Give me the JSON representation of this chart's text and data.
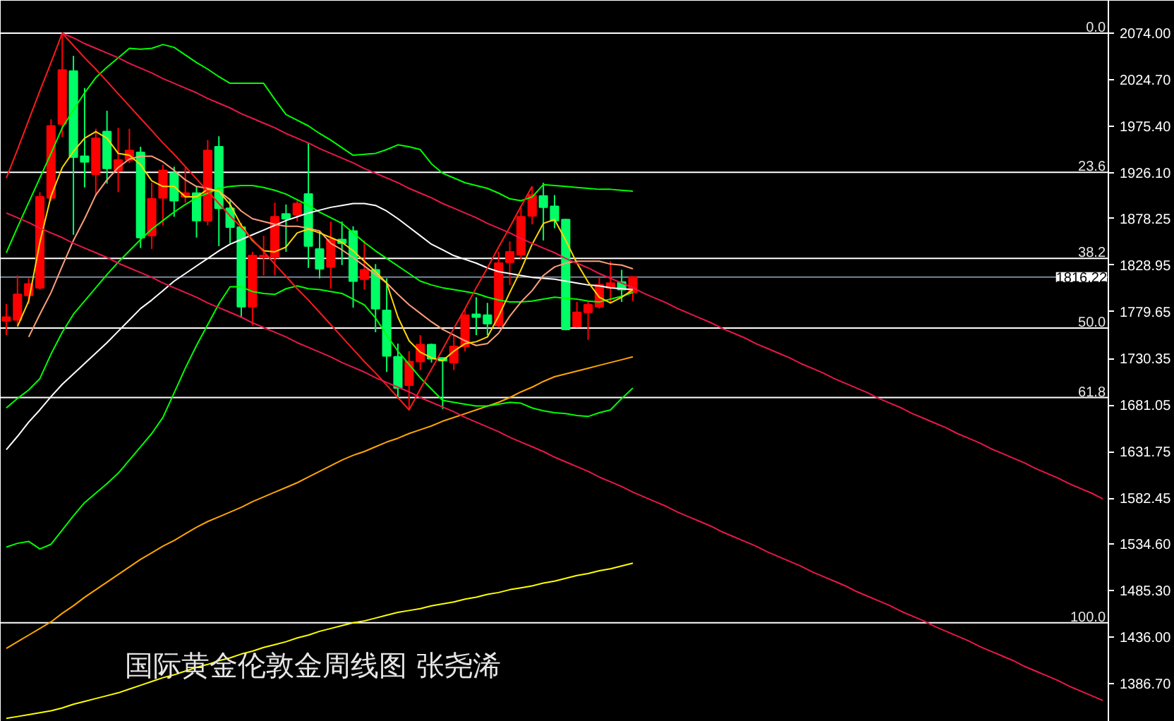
{
  "chart_data": {
    "type": "candlestick",
    "title": "国际黄金伦敦金周线图 张尧浠",
    "categories": [
      null,
      null,
      null,
      null,
      null,
      null,
      null,
      null,
      null,
      null,
      null,
      null,
      null,
      null,
      null,
      null,
      null,
      null,
      null,
      null,
      null,
      null,
      null,
      null,
      null,
      null,
      null,
      null,
      null,
      null,
      null,
      null,
      null,
      null,
      null,
      null,
      null,
      null,
      null,
      null,
      null,
      null,
      null,
      null,
      null,
      null,
      null,
      null,
      null,
      null,
      null,
      null,
      null,
      null,
      null,
      null,
      null,
      null,
      null,
      null,
      null,
      null,
      null,
      null,
      null,
      null,
      null,
      null,
      null,
      null,
      null,
      null,
      null,
      null,
      null,
      null,
      null,
      null,
      null,
      null,
      null,
      null,
      null,
      null,
      null,
      null,
      null,
      null,
      null,
      null,
      null,
      null,
      null,
      null,
      null,
      null,
      null,
      null,
      null
    ],
    "ohlc": [
      [
        1770,
        1788,
        1755,
        1774
      ],
      [
        1771,
        1818,
        1765,
        1798
      ],
      [
        1797,
        1815,
        1788,
        1809
      ],
      [
        1805,
        1906,
        1803,
        1901
      ],
      [
        1900,
        1983,
        1897,
        1976
      ],
      [
        1978,
        2074,
        1964,
        2035
      ],
      [
        2034,
        2050,
        1861,
        1943
      ],
      [
        1944,
        2016,
        1911,
        1938
      ],
      [
        1925,
        1973,
        1902,
        1963
      ],
      [
        1970,
        1992,
        1915,
        1931
      ],
      [
        1929,
        1974,
        1906,
        1940
      ],
      [
        1940,
        1973,
        1937,
        1950
      ],
      [
        1948,
        1954,
        1847,
        1858
      ],
      [
        1860,
        1916,
        1846,
        1899
      ],
      [
        1900,
        1935,
        1871,
        1929
      ],
      [
        1926,
        1933,
        1880,
        1897
      ],
      [
        1901,
        1932,
        1895,
        1905
      ],
      [
        1905,
        1912,
        1858,
        1876
      ],
      [
        1876,
        1961,
        1871,
        1950
      ],
      [
        1954,
        1965,
        1849,
        1889
      ],
      [
        1889,
        1899,
        1852,
        1869
      ],
      [
        1869,
        1873,
        1773,
        1785
      ],
      [
        1785,
        1843,
        1765,
        1839
      ],
      [
        1837,
        1860,
        1818,
        1839
      ],
      [
        1837,
        1895,
        1818,
        1880
      ],
      [
        1883,
        1893,
        1843,
        1878
      ],
      [
        1882,
        1897,
        1875,
        1894
      ],
      [
        1904,
        1958,
        1826,
        1849
      ],
      [
        1846,
        1865,
        1815,
        1825
      ],
      [
        1827,
        1875,
        1804,
        1856
      ],
      [
        1856,
        1875,
        1829,
        1852
      ],
      [
        1865,
        1870,
        1784,
        1812
      ],
      [
        1814,
        1855,
        1803,
        1824
      ],
      [
        1824,
        1830,
        1758,
        1783
      ],
      [
        1781,
        1815,
        1716,
        1733
      ],
      [
        1732,
        1746,
        1688,
        1699
      ],
      [
        1702,
        1738,
        1676,
        1727
      ],
      [
        1727,
        1755,
        1718,
        1745
      ],
      [
        1745,
        1746,
        1726,
        1730
      ],
      [
        1731,
        1731,
        1677,
        1728
      ],
      [
        1726,
        1755,
        1718,
        1743
      ],
      [
        1743,
        1783,
        1738,
        1776
      ],
      [
        1777,
        1795,
        1755,
        1774
      ],
      [
        1776,
        1789,
        1755,
        1767
      ],
      [
        1765,
        1843,
        1763,
        1831
      ],
      [
        1832,
        1854,
        1808,
        1843
      ],
      [
        1840,
        1890,
        1835,
        1880
      ],
      [
        1881,
        1912,
        1872,
        1903
      ],
      [
        1902,
        1916,
        1855,
        1890
      ],
      [
        1891,
        1903,
        1868,
        1876
      ],
      [
        1877,
        1878,
        1760,
        1761
      ],
      [
        1764,
        1790,
        1763,
        1779
      ],
      [
        1779,
        1790,
        1750,
        1787
      ],
      [
        1785,
        1816,
        1783,
        1808
      ],
      [
        1805,
        1833,
        1788,
        1810
      ],
      [
        1811,
        1824,
        1790,
        1803
      ],
      [
        1800,
        1817,
        1791,
        1816.22
      ],
      null,
      null,
      null,
      null,
      null,
      null,
      null,
      null,
      null,
      null,
      null,
      null,
      null,
      null,
      null,
      null,
      null,
      null,
      null,
      null,
      null,
      null,
      null,
      null,
      null,
      null,
      null,
      null,
      null,
      null,
      null,
      null,
      null,
      null,
      null,
      null,
      null,
      null,
      null,
      null,
      null,
      null
    ],
    "colors": [
      "#ff0000",
      "#ff0000",
      "#ff0000",
      "#ff0000",
      "#ff0000",
      "#ff0000",
      "#00ff66",
      "#00ff66",
      "#ff0000",
      "#00ff66",
      "#ff0000",
      "#ff0000",
      "#00ff66",
      "#ff0000",
      "#ff0000",
      "#00ff66",
      "#ff0000",
      "#00ff66",
      "#ff0000",
      "#00ff66",
      "#00ff66",
      "#00ff66",
      "#ff0000",
      "#ff0000",
      "#ff0000",
      "#00ff66",
      "#ff0000",
      "#00ff66",
      "#00ff66",
      "#ff0000",
      "#00ff66",
      "#00ff66",
      "#ff0000",
      "#00ff66",
      "#00ff66",
      "#00ff66",
      "#ff0000",
      "#ff0000",
      "#00ff66",
      "#00ff66",
      "#ff0000",
      "#ff0000",
      "#00ff66",
      "#00ff66",
      "#ff0000",
      "#ff0000",
      "#ff0000",
      "#ff0000",
      "#00ff66",
      "#00ff66",
      "#00ff66",
      "#ff0000",
      "#ff0000",
      "#ff0000",
      "#ff0000",
      "#00ff66",
      "#ff0000",
      null,
      null,
      null,
      null,
      null,
      null,
      null,
      null,
      null,
      null,
      null,
      null,
      null,
      null,
      null,
      null,
      null,
      null,
      null,
      null,
      null,
      null,
      null,
      null,
      null,
      null,
      null,
      null,
      null,
      null,
      null,
      null,
      null,
      null,
      null,
      null,
      null,
      null,
      null,
      null,
      null,
      null
    ],
    "series": [
      {
        "type": "line",
        "color": "#ffff00",
        "values": [
          1350,
          1352,
          1354,
          1356,
          1358,
          1361,
          1365,
          1368,
          1371,
          1374,
          1377,
          1381,
          1385,
          1389,
          1393,
          1396,
          1400,
          1404,
          1407,
          1411,
          1414,
          1418,
          1421,
          1425,
          1428,
          1431,
          1435,
          1438,
          1442,
          1445,
          1448,
          1451,
          1453,
          1456,
          1459,
          1462,
          1464,
          1466,
          1469,
          1471,
          1473,
          1476,
          1478,
          1481,
          1483,
          1486,
          1488,
          1490,
          1493,
          1495,
          1498,
          1501,
          1503,
          1506,
          1508,
          1511,
          1514,
          null,
          null,
          null,
          null,
          null,
          null,
          null,
          null,
          null,
          null,
          null,
          null,
          null,
          null,
          null,
          null,
          null,
          null,
          null,
          null,
          null,
          null,
          null,
          null,
          null,
          null,
          null,
          null,
          null,
          null,
          null,
          null,
          null,
          null,
          null,
          null,
          null,
          null,
          null,
          null,
          null,
          null
        ]
      },
      {
        "type": "line",
        "color": "#ffa500",
        "values": [
          1424,
          1431,
          1438,
          1445,
          1452,
          1461,
          1469,
          1478,
          1486,
          1494,
          1502,
          1510,
          1518,
          1525,
          1532,
          1538,
          1545,
          1552,
          1558,
          1563,
          1568,
          1573,
          1579,
          1584,
          1589,
          1594,
          1599,
          1605,
          1611,
          1617,
          1623,
          1628,
          1632,
          1637,
          1642,
          1646,
          1651,
          1655,
          1659,
          1664,
          1668,
          1672,
          1676,
          1680,
          1684,
          1689,
          1695,
          1700,
          1706,
          1711,
          1714,
          1717,
          1720,
          1723,
          1726,
          1729,
          1732,
          null,
          null,
          null,
          null,
          null,
          null,
          null,
          null,
          null,
          null,
          null,
          null,
          null,
          null,
          null,
          null,
          null,
          null,
          null,
          null,
          null,
          null,
          null,
          null,
          null,
          null,
          null,
          null,
          null,
          null,
          null,
          null,
          null,
          null,
          null,
          null,
          null,
          null,
          null,
          null,
          null,
          null
        ]
      },
      {
        "type": "line",
        "color": "#00ff00",
        "values": [
          1842,
          1869,
          1895,
          1921,
          1947,
          1974,
          1993,
          2011,
          2027,
          2038,
          2048,
          2058,
          2057,
          2058,
          2062,
          2059,
          2051,
          2043,
          2036,
          2028,
          2021,
          2021,
          2021,
          2021,
          2004,
          1988,
          1982,
          1976,
          1968,
          1961,
          1953,
          1945,
          1946,
          1947,
          1951,
          1956,
          1954,
          1951,
          1936,
          1926,
          1921,
          1916,
          1913,
          1910,
          1905,
          1899,
          1897,
          1901,
          1914,
          1913,
          1912,
          1911,
          1910,
          1909,
          1909,
          1908,
          1907,
          null,
          null,
          null,
          null,
          null,
          null,
          null,
          null,
          null,
          null,
          null,
          null,
          null,
          null,
          null,
          null,
          null,
          null,
          null,
          null,
          null,
          null,
          null,
          null,
          null,
          null,
          null,
          null,
          null,
          null,
          null,
          null,
          null,
          null,
          null,
          null,
          null,
          null,
          null,
          null,
          null,
          null
        ]
      },
      {
        "type": "line",
        "color": "#00ff00",
        "values": [
          1678,
          1688,
          1697,
          1709,
          1735,
          1758,
          1777,
          1791,
          1805,
          1819,
          1832,
          1844,
          1856,
          1867,
          1876,
          1885,
          1893,
          1900,
          1905,
          1910,
          1912,
          1913,
          1913,
          1911,
          1908,
          1904,
          1898,
          1892,
          1885,
          1879,
          1873,
          1863,
          1853,
          1844,
          1836,
          1828,
          1820,
          1812,
          1808,
          1805,
          1803,
          1801,
          1799,
          1795,
          1792,
          1790,
          1790,
          1791,
          1793,
          1795,
          1794,
          1793,
          1791,
          1790,
          1793,
          1796,
          1800,
          null,
          null,
          null,
          null,
          null,
          null,
          null,
          null,
          null,
          null,
          null,
          null,
          null,
          null,
          null,
          null,
          null,
          null,
          null,
          null,
          null,
          null,
          null,
          null,
          null,
          null,
          null,
          null,
          null,
          null,
          null,
          null,
          null,
          null,
          null,
          null,
          null,
          null,
          null,
          null,
          null,
          null
        ]
      },
      {
        "type": "line",
        "color": "#00ff00",
        "values": [
          1531,
          1535,
          1537,
          1529,
          1534,
          1549,
          1564,
          1578,
          1588,
          1598,
          1609,
          1623,
          1637,
          1651,
          1668,
          1694,
          1720,
          1744,
          1766,
          1788,
          1806,
          1806,
          1801,
          1799,
          1798,
          1804,
          1807,
          1804,
          1803,
          1801,
          1799,
          1793,
          1787,
          1773,
          1755,
          1738,
          1724,
          1710,
          1698,
          1686,
          1684,
          1682,
          1680,
          1680,
          1682,
          1684,
          1683,
          1678,
          1675,
          1673,
          1672,
          1670,
          1669,
          1673,
          1676,
          1688,
          1699,
          null,
          null,
          null,
          null,
          null,
          null,
          null,
          null,
          null,
          null,
          null,
          null,
          null,
          null,
          null,
          null,
          null,
          null,
          null,
          null,
          null,
          null,
          null,
          null,
          null,
          null,
          null,
          null,
          null,
          null,
          null,
          null,
          null,
          null,
          null,
          null,
          null,
          null,
          null,
          null,
          null,
          null
        ]
      },
      {
        "type": "line",
        "color": "#ffffff",
        "values": [
          1634,
          1648,
          1663,
          1676,
          1690,
          1703,
          1714,
          1725,
          1736,
          1747,
          1759,
          1771,
          1783,
          1792,
          1802,
          1812,
          1820,
          1828,
          1836,
          1844,
          1851,
          1856,
          1861,
          1866,
          1871,
          1876,
          1880,
          1884,
          1887,
          1890,
          1892,
          1894,
          1894,
          1892,
          1886,
          1878,
          1869,
          1860,
          1851,
          1845,
          1839,
          1835,
          1831,
          1826,
          1822,
          1820,
          1818,
          1816,
          1815,
          1814,
          1812,
          1810,
          1808,
          1807,
          1805,
          1804,
          1803,
          null,
          null,
          null,
          null,
          null,
          null,
          null,
          null,
          null,
          null,
          null,
          null,
          null,
          null,
          null,
          null,
          null,
          null,
          null,
          null,
          null,
          null,
          null,
          null,
          null,
          null,
          null,
          null,
          null,
          null,
          null,
          null,
          null,
          null,
          null,
          null,
          null,
          null,
          null,
          null,
          null,
          null
        ]
      },
      {
        "type": "line",
        "color": "#ffa07a",
        "values": [
          null,
          null,
          1753,
          1777,
          1800,
          1828,
          1855,
          1878,
          1903,
          1919,
          1932,
          1941,
          1944,
          1944,
          1938,
          1929,
          1919,
          1912,
          1910,
          1907,
          1898,
          1886,
          1878,
          1875,
          1872,
          1870,
          1870,
          1868,
          1865,
          1852,
          1845,
          1837,
          1828,
          1819,
          1810,
          1798,
          1787,
          1778,
          1769,
          1761,
          1755,
          1749,
          1744,
          1746,
          1757,
          1775,
          1790,
          1802,
          1818,
          1827,
          1831,
          1833,
          1833,
          1833,
          1830,
          1829,
          1825,
          null,
          null,
          null,
          null,
          null,
          null,
          null,
          null,
          null,
          null,
          null,
          null,
          null,
          null,
          null,
          null,
          null,
          null,
          null,
          null,
          null,
          null,
          null,
          null,
          null,
          null,
          null,
          null,
          null,
          null,
          null,
          null,
          null,
          null,
          null,
          null,
          null,
          null,
          null,
          null,
          null,
          null
        ]
      },
      {
        "type": "line",
        "color": "#ffd700",
        "values": [
          null,
          1764,
          1791,
          1853,
          1902,
          1932,
          1949,
          1963,
          1970,
          1963,
          1947,
          1945,
          1935,
          1918,
          1912,
          1912,
          1901,
          1901,
          1909,
          1907,
          1893,
          1871,
          1855,
          1844,
          1843,
          1848,
          1863,
          1867,
          1863,
          1858,
          1853,
          1844,
          1833,
          1822,
          1810,
          1774,
          1749,
          1737,
          1731,
          1728,
          1738,
          1746,
          1748,
          1753,
          1775,
          1800,
          1824,
          1851,
          1873,
          1877,
          1855,
          1831,
          1811,
          1795,
          1789,
          1795,
          1803,
          null,
          null,
          null,
          null,
          null,
          null,
          null,
          null,
          null,
          null,
          null,
          null,
          null,
          null,
          null,
          null,
          null,
          null,
          null,
          null,
          null,
          null,
          null,
          null,
          null,
          null,
          null,
          null,
          null,
          null,
          null,
          null,
          null,
          null,
          null,
          null,
          null,
          null,
          null,
          null,
          null,
          null
        ]
      },
      {
        "type": "line",
        "color": "#ff1a1a",
        "values": [
          1921,
          1951,
          1982,
          2013,
          2043,
          2074,
          2061,
          2048,
          2036,
          2023,
          2010,
          1997,
          1984,
          1971,
          1958,
          1946,
          1933,
          1920,
          1907,
          1894,
          1881,
          1869,
          1856,
          1843,
          1830,
          1817,
          1804,
          1792,
          1779,
          1766,
          1753,
          1740,
          1727,
          1715,
          1702,
          1689,
          1676,
          1698,
          1719,
          1740,
          1762,
          1783,
          1805,
          1826,
          1848,
          1869,
          1891,
          1912,
          null,
          null,
          null,
          null,
          null,
          null,
          null,
          null,
          null,
          null,
          null,
          null,
          null,
          null,
          null,
          null,
          null,
          null,
          null,
          null,
          null,
          null,
          null,
          null,
          null,
          null,
          null,
          null,
          null,
          null,
          null,
          null,
          null,
          null,
          null,
          null,
          null,
          null,
          null,
          null,
          null,
          null,
          null,
          null,
          null,
          null,
          null,
          null,
          null,
          null,
          null
        ]
      },
      {
        "type": "line",
        "color": "#e8174a",
        "values": [
          null,
          null,
          null,
          null,
          null,
          2074,
          2069,
          2063,
          2058,
          2053,
          2048,
          2042,
          2037,
          2032,
          2026,
          2021,
          2016,
          2011,
          2005,
          2000,
          1995,
          1989,
          1984,
          1979,
          1974,
          1968,
          1963,
          1958,
          1952,
          1947,
          1942,
          1937,
          1931,
          1926,
          1921,
          1916,
          1910,
          1905,
          1900,
          1894,
          1889,
          1884,
          1879,
          1873,
          1868,
          1863,
          1857,
          1852,
          1847,
          1842,
          1836,
          1831,
          1826,
          1820,
          1815,
          1810,
          1805,
          1799,
          1794,
          1789,
          1783,
          1778,
          1773,
          1768,
          1762,
          1757,
          1752,
          1746,
          1741,
          1736,
          1731,
          1725,
          1720,
          1715,
          1709,
          1704,
          1699,
          1694,
          1688,
          1683,
          1678,
          1672,
          1667,
          1662,
          1657,
          1651,
          1646,
          1641,
          1635,
          1630,
          1625,
          1620,
          1614,
          1609,
          1604,
          1598,
          1593,
          1588,
          1582
        ]
      },
      {
        "type": "line",
        "color": "#e8174a",
        "values": [
          1884,
          1879,
          1874,
          1868,
          1863,
          1858,
          1852,
          1847,
          1842,
          1837,
          1831,
          1826,
          1821,
          1816,
          1810,
          1805,
          1800,
          1795,
          1789,
          1784,
          1779,
          1774,
          1768,
          1763,
          1758,
          1753,
          1747,
          1742,
          1737,
          1732,
          1726,
          1721,
          1716,
          1710,
          1705,
          1700,
          1695,
          1689,
          1684,
          1679,
          1674,
          1668,
          1663,
          1658,
          1653,
          1647,
          1642,
          1637,
          1632,
          1626,
          1621,
          1616,
          1611,
          1605,
          1600,
          1595,
          1589,
          1584,
          1579,
          1574,
          1568,
          1563,
          1558,
          1553,
          1547,
          1542,
          1537,
          1532,
          1526,
          1521,
          1516,
          1511,
          1505,
          1500,
          1495,
          1490,
          1484,
          1479,
          1474,
          1469,
          1463,
          1458,
          1453,
          1447,
          1442,
          1437,
          1432,
          1426,
          1421,
          1416,
          1411,
          1405,
          1400,
          1395,
          1390,
          1384,
          1379,
          1374,
          1369
        ]
      }
    ],
    "ylim": [
      1346.5,
      2108.3
    ],
    "yticks": [
      {
        "value": 2074,
        "label": "2074.00"
      },
      {
        "value": 2024.7,
        "label": "2024.70"
      },
      {
        "value": 1975.4,
        "label": "1975.40"
      },
      {
        "value": 1926.1,
        "label": "1926.10"
      },
      1878.25,
      1828.95,
      1779.65,
      1730.35,
      1681.05,
      1631.75,
      1582.45,
      {
        "value": 1534.6,
        "label": "1534.60"
      },
      {
        "value": 1485.3,
        "label": "1485.30"
      },
      {
        "value": 1436,
        "label": "1436.00"
      },
      {
        "value": 1386.7,
        "label": "1386.70"
      }
    ],
    "tick_labels": "y",
    "ref_lines": [
      {
        "axis": "y",
        "value": 2074
      },
      {
        "axis": "y",
        "value": 1927
      },
      {
        "axis": "y",
        "value": 1836
      },
      {
        "axis": "y",
        "value": 1762.5
      },
      {
        "axis": "y",
        "value": 1689
      },
      {
        "axis": "y",
        "value": 1451
      },
      {
        "axis": "y",
        "value": 1816.22,
        "label": "1816.22",
        "color": "#778899"
      }
    ],
    "annotations": [
      {
        "text": "0.0",
        "y": 2074
      },
      {
        "text": "23.6",
        "y": 1927
      },
      {
        "text": "38.2",
        "y": 1836
      },
      {
        "text": "50.0",
        "y": 1762.5
      },
      {
        "text": "61.8",
        "y": 1689
      },
      {
        "text": "100.0",
        "y": 1451
      }
    ]
  }
}
